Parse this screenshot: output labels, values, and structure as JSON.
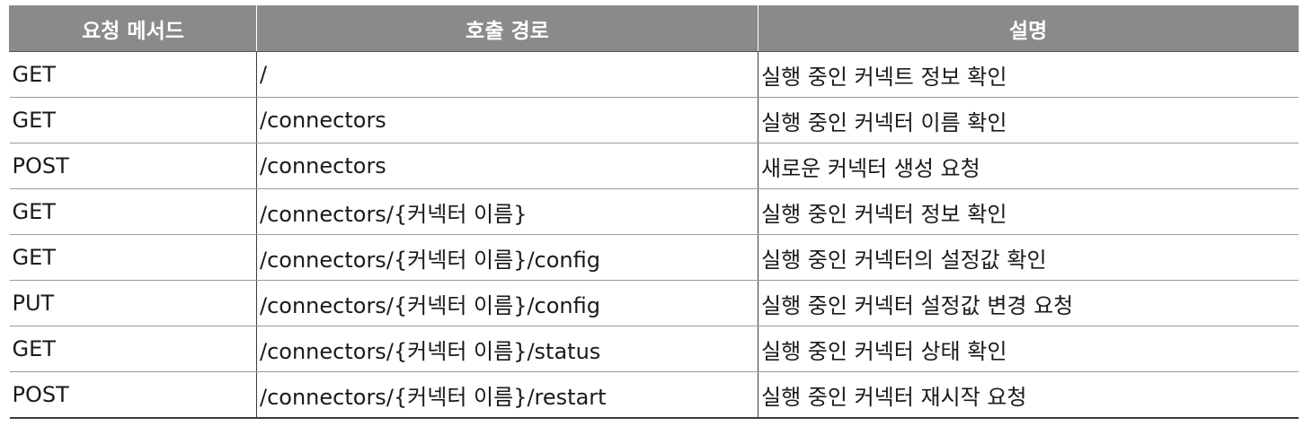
{
  "table": {
    "headers": [
      "요청 메서드",
      "호출 경로",
      "설명"
    ],
    "rows": [
      [
        "GET",
        "/",
        "실행 중인 커넥트 정보 확인"
      ],
      [
        "GET",
        "/connectors",
        "실행 중인 커넥터 이름 확인"
      ],
      [
        "POST",
        "/connectors",
        "새로운 커넥터 생성 요청"
      ],
      [
        "GET",
        "/connectors/{커넥터 이름}",
        "실행 중인 커넥터 정보 확인"
      ],
      [
        "GET",
        "/connectors/{커넥터 이름}/config",
        "실행 중인 커넥터의 설정값 확인"
      ],
      [
        "PUT",
        "/connectors/{커넥터 이름}/config",
        "실행 중인 커넥터 설정값 변경 요청"
      ],
      [
        "GET",
        "/connectors/{커넥터 이름}/status",
        "실행 중인 커넥터 상태 확인"
      ],
      [
        "POST",
        "/connectors/{커넥터 이름}/restart",
        "실행 중인 커넥터 재시작 요청"
      ]
    ]
  }
}
